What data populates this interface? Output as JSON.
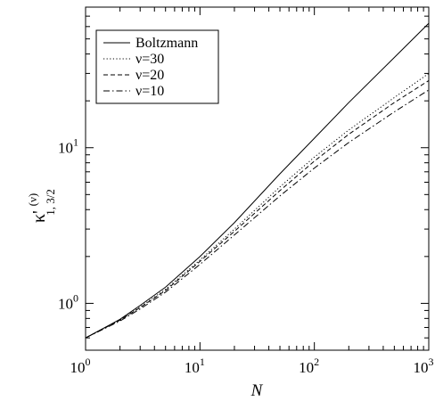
{
  "chart_data": {
    "type": "line",
    "xscale": "log",
    "yscale": "log",
    "xlim": [
      1,
      1000
    ],
    "ylim": [
      0.5,
      80
    ],
    "xlabel": "N",
    "ylabel": "κ'",
    "ylabel_superscript": "(ν)",
    "ylabel_subscript": "1, 3/2",
    "x_ticks": [
      {
        "value": 1,
        "base": "10",
        "exp": "0"
      },
      {
        "value": 10,
        "base": "10",
        "exp": "1"
      },
      {
        "value": 100,
        "base": "10",
        "exp": "2"
      },
      {
        "value": 1000,
        "base": "10",
        "exp": "3"
      }
    ],
    "y_ticks": [
      {
        "value": 1,
        "base": "10",
        "exp": "0"
      },
      {
        "value": 10,
        "base": "10",
        "exp": "1"
      }
    ],
    "legend_position": "top-left",
    "series": [
      {
        "name": "Boltzmann",
        "style": "solid",
        "x": [
          1,
          2,
          3,
          5,
          10,
          20,
          50,
          100,
          200,
          500,
          1000
        ],
        "y": [
          0.6,
          0.79,
          0.97,
          1.27,
          2.0,
          3.3,
          6.8,
          11.5,
          19.5,
          38,
          63
        ]
      },
      {
        "name": "ν=30",
        "style": "dotted",
        "x": [
          1,
          2,
          3,
          5,
          10,
          20,
          50,
          100,
          200,
          500,
          1000
        ],
        "y": [
          0.6,
          0.78,
          0.95,
          1.23,
          1.9,
          3.0,
          5.6,
          8.7,
          13.0,
          21,
          30
        ]
      },
      {
        "name": "ν=20",
        "style": "dashed",
        "x": [
          1,
          2,
          3,
          5,
          10,
          20,
          50,
          100,
          200,
          500,
          1000
        ],
        "y": [
          0.6,
          0.78,
          0.94,
          1.21,
          1.86,
          2.9,
          5.3,
          8.2,
          12.2,
          19.5,
          27
        ]
      },
      {
        "name": "ν=10",
        "style": "dashdot",
        "x": [
          1,
          2,
          3,
          5,
          10,
          20,
          50,
          100,
          200,
          500,
          1000
        ],
        "y": [
          0.6,
          0.77,
          0.92,
          1.18,
          1.78,
          2.75,
          4.9,
          7.4,
          10.8,
          17,
          23.5
        ]
      }
    ]
  }
}
